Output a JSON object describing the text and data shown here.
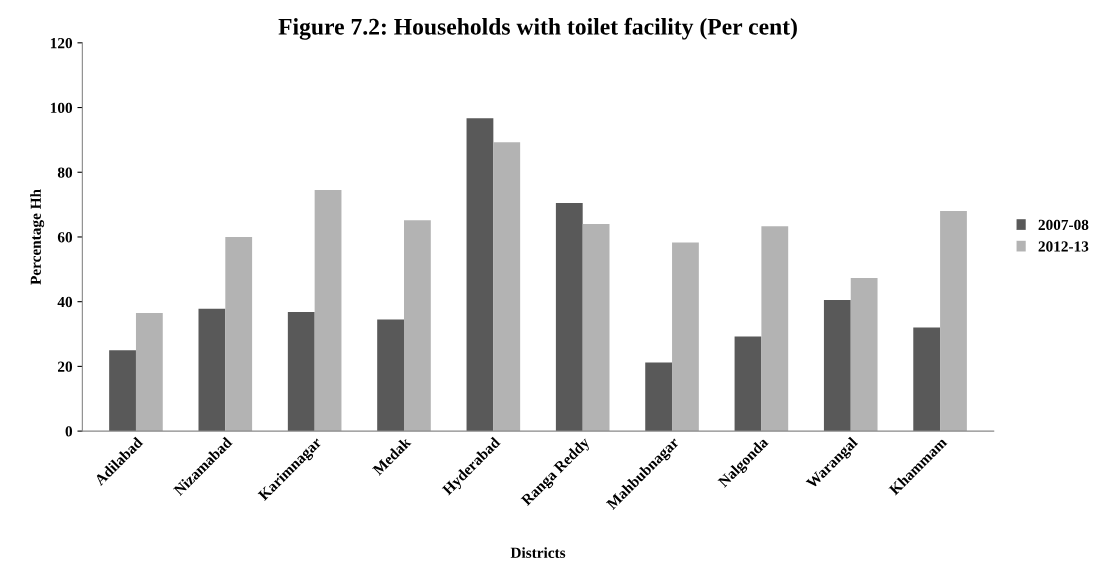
{
  "chart_data": {
    "type": "bar",
    "title": "Figure 7.2: Households with toilet facility (Per cent)",
    "xlabel": "Districts",
    "ylabel": "Percentage Hh",
    "categories": [
      "Adilabad",
      "Nizamabad",
      "Karimnagar",
      "Medak",
      "Hyderabad",
      "Ranga Reddy",
      "Mahbubnagar",
      "Nalgonda",
      "Warangal",
      "Khammam"
    ],
    "series": [
      {
        "name": "2007-08",
        "color": "#595959",
        "values": [
          25,
          37.8,
          36.8,
          34.5,
          96.7,
          70.5,
          21.2,
          29.2,
          40.5,
          32
        ]
      },
      {
        "name": "2012-13",
        "color": "#b3b3b3",
        "values": [
          36.5,
          60,
          74.5,
          65.2,
          89.3,
          64,
          58.3,
          63.3,
          47.3,
          68
        ]
      }
    ],
    "ylim": [
      0,
      120
    ],
    "yticks": [
      0,
      20,
      40,
      60,
      80,
      100,
      120
    ],
    "grid": false,
    "legend": "right"
  }
}
